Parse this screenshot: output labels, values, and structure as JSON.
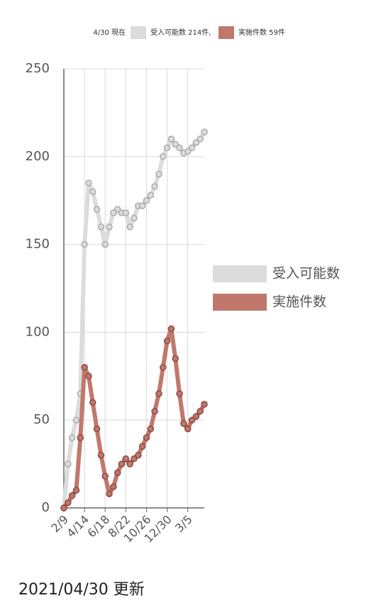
{
  "chart_data": {
    "type": "line",
    "header": {
      "as_of": "4/30 現在",
      "capacity": "受入可能数 214件,",
      "performed": "実施件数 59件"
    },
    "footer": "2021/04/30 更新",
    "categories": [
      "2/9",
      null,
      null,
      null,
      null,
      "4/14",
      null,
      null,
      null,
      null,
      "6/18",
      null,
      null,
      null,
      null,
      "8/22",
      null,
      null,
      null,
      null,
      "10/26",
      null,
      null,
      null,
      null,
      "12/30",
      null,
      null,
      null,
      null,
      "3/5",
      null,
      null,
      null,
      null
    ],
    "series": [
      {
        "name": "受入可能数",
        "color": "#dcdcdc",
        "values": [
          0,
          25,
          40,
          50,
          65,
          150,
          185,
          180,
          170,
          160,
          150,
          160,
          168,
          170,
          168,
          168,
          160,
          165,
          172,
          172,
          175,
          178,
          183,
          190,
          200,
          205,
          210,
          207,
          205,
          202,
          203,
          205,
          208,
          210,
          214
        ]
      },
      {
        "name": "実施件数",
        "color": "#c0786c",
        "values": [
          0,
          3,
          7,
          10,
          40,
          80,
          75,
          60,
          45,
          30,
          18,
          8,
          12,
          20,
          25,
          28,
          25,
          28,
          30,
          35,
          40,
          45,
          55,
          65,
          80,
          95,
          102,
          85,
          65,
          48,
          45,
          50,
          52,
          55,
          59
        ]
      }
    ],
    "ylim": [
      0,
      250
    ],
    "yticks": [
      0,
      50,
      100,
      150,
      200,
      250
    ],
    "grid": true,
    "legend": "right"
  }
}
